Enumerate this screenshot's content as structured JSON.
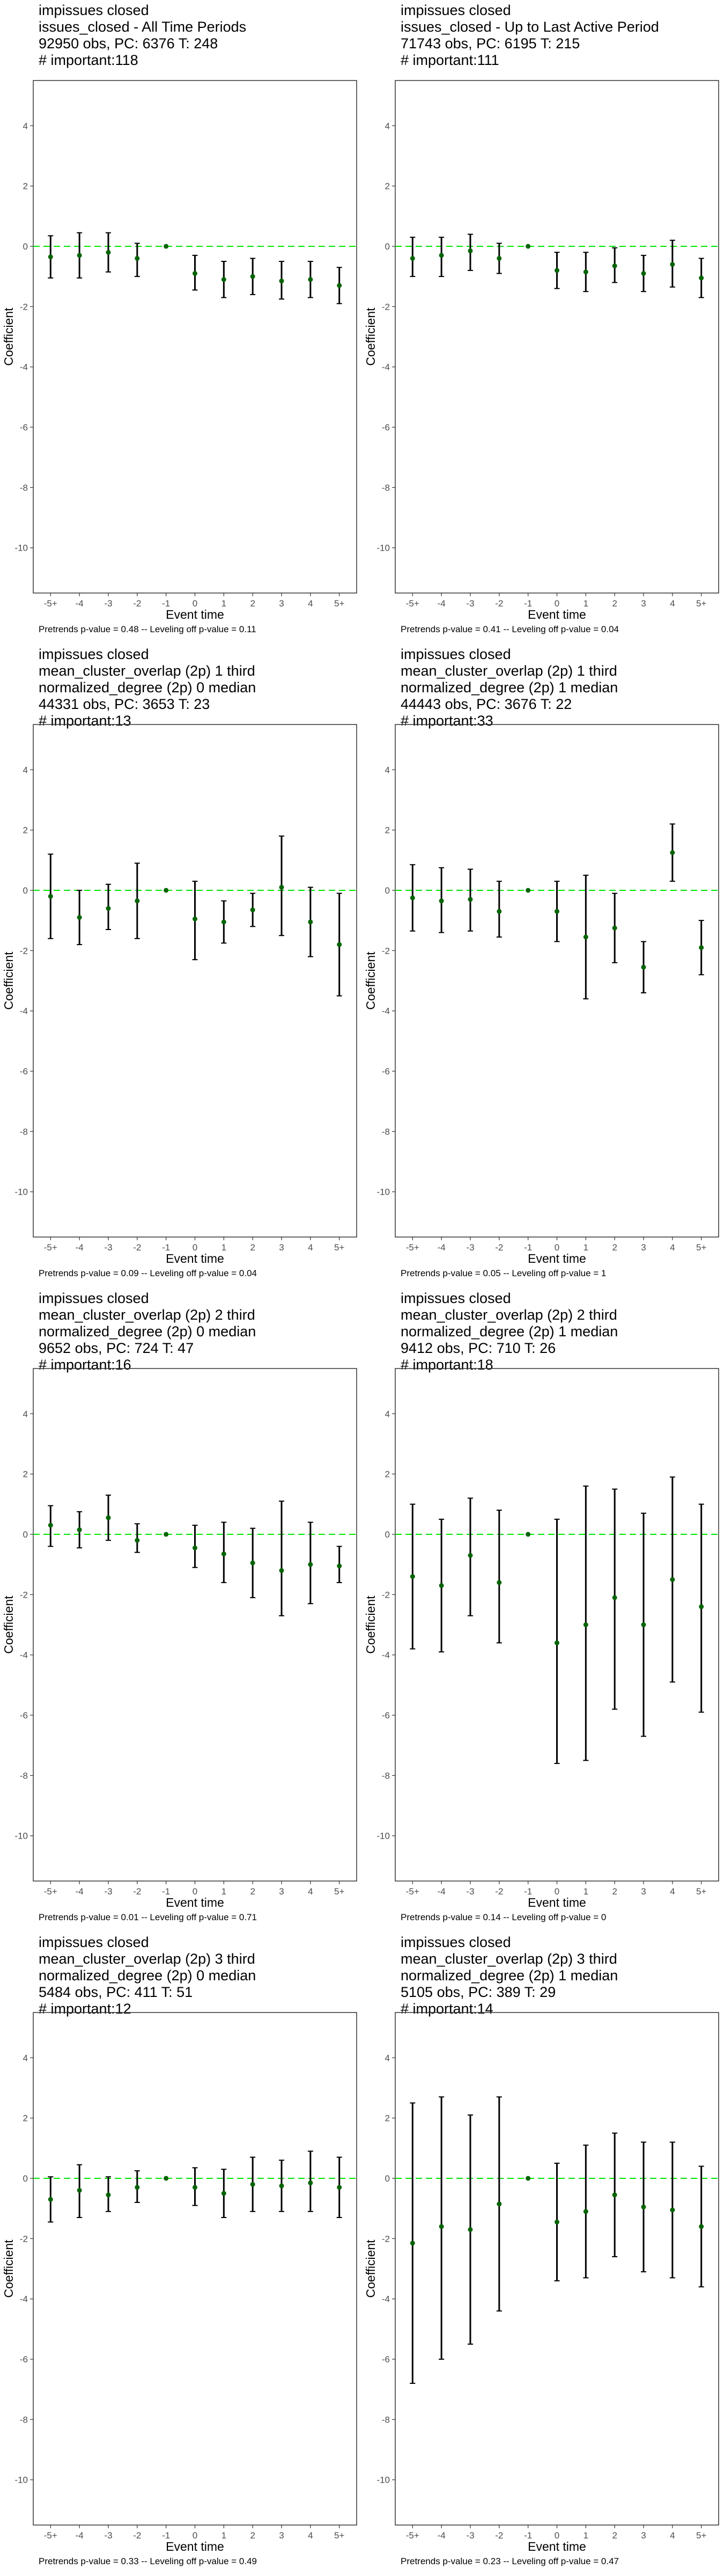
{
  "colors": {
    "reference_line": "#00e600",
    "point": "#006400",
    "error_bar": "#000000",
    "frame": "#333333",
    "tick_text": "#4d4d4d"
  },
  "axis": {
    "xlabel": "Event time",
    "ylabel": "Coefficient",
    "categories": [
      "-5+",
      "-4",
      "-3",
      "-2",
      "-1",
      "0",
      "1",
      "2",
      "3",
      "4",
      "5+"
    ],
    "y_ticks": [
      4,
      2,
      0,
      -2,
      -4,
      -6,
      -8,
      -10
    ],
    "ylim": [
      -11.5,
      5.5
    ]
  },
  "chart_data": [
    {
      "type": "scatter",
      "title_lines": [
        "impissues closed",
        "issues_closed - All Time Periods",
        "92950 obs, PC: 6376 T: 248",
        "# important:118"
      ],
      "note": "Pretrends p-value = 0.48 -- Leveling off p-value = 0.11",
      "xlabel": "Event time",
      "ylabel": "Coefficient",
      "categories": [
        "-5+",
        "-4",
        "-3",
        "-2",
        "-1",
        "0",
        "1",
        "2",
        "3",
        "4",
        "5+"
      ],
      "estimate": [
        -0.35,
        -0.3,
        -0.2,
        -0.4,
        0.0,
        -0.9,
        -1.1,
        -1.0,
        -1.15,
        -1.1,
        -1.3
      ],
      "ci_low": [
        -1.05,
        -1.05,
        -0.85,
        -1.0,
        0.0,
        -1.45,
        -1.7,
        -1.6,
        -1.75,
        -1.7,
        -1.9
      ],
      "ci_high": [
        0.35,
        0.45,
        0.45,
        0.1,
        0.0,
        -0.3,
        -0.5,
        -0.4,
        -0.5,
        -0.5,
        -0.7
      ],
      "ylim": [
        -11.5,
        5.5
      ]
    },
    {
      "type": "scatter",
      "title_lines": [
        "impissues closed",
        "issues_closed - Up to Last Active Period",
        "71743 obs, PC: 6195 T: 215",
        "# important:111"
      ],
      "note": "Pretrends p-value = 0.41 -- Leveling off p-value = 0.04",
      "xlabel": "Event time",
      "ylabel": "Coefficient",
      "categories": [
        "-5+",
        "-4",
        "-3",
        "-2",
        "-1",
        "0",
        "1",
        "2",
        "3",
        "4",
        "5+"
      ],
      "estimate": [
        -0.4,
        -0.3,
        -0.15,
        -0.4,
        0.0,
        -0.8,
        -0.85,
        -0.65,
        -0.9,
        -0.6,
        -1.05
      ],
      "ci_low": [
        -1.0,
        -1.0,
        -0.8,
        -0.9,
        0.0,
        -1.4,
        -1.5,
        -1.2,
        -1.5,
        -1.35,
        -1.7
      ],
      "ci_high": [
        0.3,
        0.3,
        0.4,
        0.1,
        0.0,
        -0.2,
        -0.2,
        -0.05,
        -0.3,
        0.2,
        -0.4
      ],
      "ylim": [
        -11.5,
        5.5
      ]
    },
    {
      "type": "scatter",
      "title_lines": [
        "impissues closed",
        "mean_cluster_overlap (2p) 1 third",
        "normalized_degree (2p) 0 median",
        "44331 obs, PC: 3653 T: 23",
        "# important:13"
      ],
      "note": "Pretrends p-value = 0.09 -- Leveling off p-value = 0.04",
      "xlabel": "Event time",
      "ylabel": "Coefficient",
      "categories": [
        "-5+",
        "-4",
        "-3",
        "-2",
        "-1",
        "0",
        "1",
        "2",
        "3",
        "4",
        "5+"
      ],
      "estimate": [
        -0.2,
        -0.9,
        -0.6,
        -0.35,
        0.0,
        -0.95,
        -1.05,
        -0.65,
        0.1,
        -1.05,
        -1.8
      ],
      "ci_low": [
        -1.6,
        -1.8,
        -1.3,
        -1.6,
        0.0,
        -2.3,
        -1.75,
        -1.2,
        -1.5,
        -2.2,
        -3.5
      ],
      "ci_high": [
        1.2,
        0.0,
        0.2,
        0.9,
        0.0,
        0.3,
        -0.35,
        -0.1,
        1.8,
        0.1,
        -0.1
      ],
      "ylim": [
        -11.5,
        5.5
      ]
    },
    {
      "type": "scatter",
      "title_lines": [
        "impissues closed",
        "mean_cluster_overlap (2p) 1 third",
        "normalized_degree (2p) 1 median",
        "44443 obs, PC: 3676 T: 22",
        "# important:33"
      ],
      "note": "Pretrends p-value = 0.05 -- Leveling off p-value = 1",
      "xlabel": "Event time",
      "ylabel": "Coefficient",
      "categories": [
        "-5+",
        "-4",
        "-3",
        "-2",
        "-1",
        "0",
        "1",
        "2",
        "3",
        "4",
        "5+"
      ],
      "estimate": [
        -0.25,
        -0.35,
        -0.3,
        -0.7,
        0.0,
        -0.7,
        -1.55,
        -1.25,
        -2.55,
        1.25,
        -1.9
      ],
      "ci_low": [
        -1.35,
        -1.4,
        -1.35,
        -1.55,
        0.0,
        -1.7,
        -3.6,
        -2.4,
        -3.4,
        0.3,
        -2.8
      ],
      "ci_high": [
        0.85,
        0.75,
        0.7,
        0.3,
        0.0,
        0.3,
        0.5,
        -0.1,
        -1.7,
        2.2,
        -1.0
      ],
      "ylim": [
        -11.5,
        5.5
      ]
    },
    {
      "type": "scatter",
      "title_lines": [
        "impissues closed",
        "mean_cluster_overlap (2p) 2 third",
        "normalized_degree (2p) 0 median",
        "9652 obs, PC: 724 T: 47",
        "# important:16"
      ],
      "note": "Pretrends p-value = 0.01 -- Leveling off p-value = 0.71",
      "xlabel": "Event time",
      "ylabel": "Coefficient",
      "categories": [
        "-5+",
        "-4",
        "-3",
        "-2",
        "-1",
        "0",
        "1",
        "2",
        "3",
        "4",
        "5+"
      ],
      "estimate": [
        0.3,
        0.15,
        0.55,
        -0.2,
        0.0,
        -0.45,
        -0.65,
        -0.95,
        -1.2,
        -1.0,
        -1.05
      ],
      "ci_low": [
        -0.4,
        -0.45,
        -0.2,
        -0.6,
        0.0,
        -1.1,
        -1.6,
        -2.1,
        -2.7,
        -2.3,
        -1.6
      ],
      "ci_high": [
        0.95,
        0.75,
        1.3,
        0.35,
        0.0,
        0.3,
        0.4,
        0.2,
        1.1,
        0.4,
        -0.4
      ],
      "ylim": [
        -11.5,
        5.5
      ]
    },
    {
      "type": "scatter",
      "title_lines": [
        "impissues closed",
        "mean_cluster_overlap (2p) 2 third",
        "normalized_degree (2p) 1 median",
        "9412 obs, PC: 710 T: 26",
        "# important:18"
      ],
      "note": "Pretrends p-value = 0.14 -- Leveling off p-value = 0",
      "xlabel": "Event time",
      "ylabel": "Coefficient",
      "categories": [
        "-5+",
        "-4",
        "-3",
        "-2",
        "-1",
        "0",
        "1",
        "2",
        "3",
        "4",
        "5+"
      ],
      "estimate": [
        -1.4,
        -1.7,
        -0.7,
        -1.6,
        0.0,
        -3.6,
        -3.0,
        -2.1,
        -3.0,
        -1.5,
        -2.4
      ],
      "ci_low": [
        -3.8,
        -3.9,
        -2.7,
        -3.6,
        0.0,
        -7.6,
        -7.5,
        -5.8,
        -6.7,
        -4.9,
        -5.9
      ],
      "ci_high": [
        1.0,
        0.5,
        1.2,
        0.8,
        0.0,
        0.5,
        1.6,
        1.5,
        0.7,
        1.9,
        1.0
      ],
      "ylim": [
        -11.5,
        5.5
      ]
    },
    {
      "type": "scatter",
      "title_lines": [
        "impissues closed",
        "mean_cluster_overlap (2p) 3 third",
        "normalized_degree (2p) 0 median",
        "5484 obs, PC: 411 T: 51",
        "# important:12"
      ],
      "note": "Pretrends p-value = 0.33 -- Leveling off p-value = 0.49",
      "xlabel": "Event time",
      "ylabel": "Coefficient",
      "categories": [
        "-5+",
        "-4",
        "-3",
        "-2",
        "-1",
        "0",
        "1",
        "2",
        "3",
        "4",
        "5+"
      ],
      "estimate": [
        -0.7,
        -0.4,
        -0.55,
        -0.3,
        0.0,
        -0.3,
        -0.5,
        -0.2,
        -0.25,
        -0.15,
        -0.3
      ],
      "ci_low": [
        -1.45,
        -1.3,
        -1.1,
        -0.8,
        0.0,
        -0.9,
        -1.3,
        -1.1,
        -1.1,
        -1.1,
        -1.3
      ],
      "ci_high": [
        0.05,
        0.45,
        0.05,
        0.25,
        0.0,
        0.35,
        0.3,
        0.7,
        0.6,
        0.9,
        0.7
      ],
      "ylim": [
        -11.5,
        5.5
      ]
    },
    {
      "type": "scatter",
      "title_lines": [
        "impissues closed",
        "mean_cluster_overlap (2p) 3 third",
        "normalized_degree (2p) 1 median",
        "5105 obs, PC: 389 T: 29",
        "# important:14"
      ],
      "note": "Pretrends p-value = 0.23 -- Leveling off p-value = 0.47",
      "xlabel": "Event time",
      "ylabel": "Coefficient",
      "categories": [
        "-5+",
        "-4",
        "-3",
        "-2",
        "-1",
        "0",
        "1",
        "2",
        "3",
        "4",
        "5+"
      ],
      "estimate": [
        -2.15,
        -1.6,
        -1.7,
        -0.85,
        0.0,
        -1.45,
        -1.1,
        -0.55,
        -0.95,
        -1.05,
        -1.6
      ],
      "ci_low": [
        -6.8,
        -6.0,
        -5.5,
        -4.4,
        0.0,
        -3.4,
        -3.3,
        -2.6,
        -3.1,
        -3.3,
        -3.6
      ],
      "ci_high": [
        2.5,
        2.7,
        2.1,
        2.7,
        0.0,
        0.5,
        1.1,
        1.5,
        1.2,
        1.2,
        0.4
      ],
      "ylim": [
        -11.5,
        5.5
      ]
    }
  ]
}
